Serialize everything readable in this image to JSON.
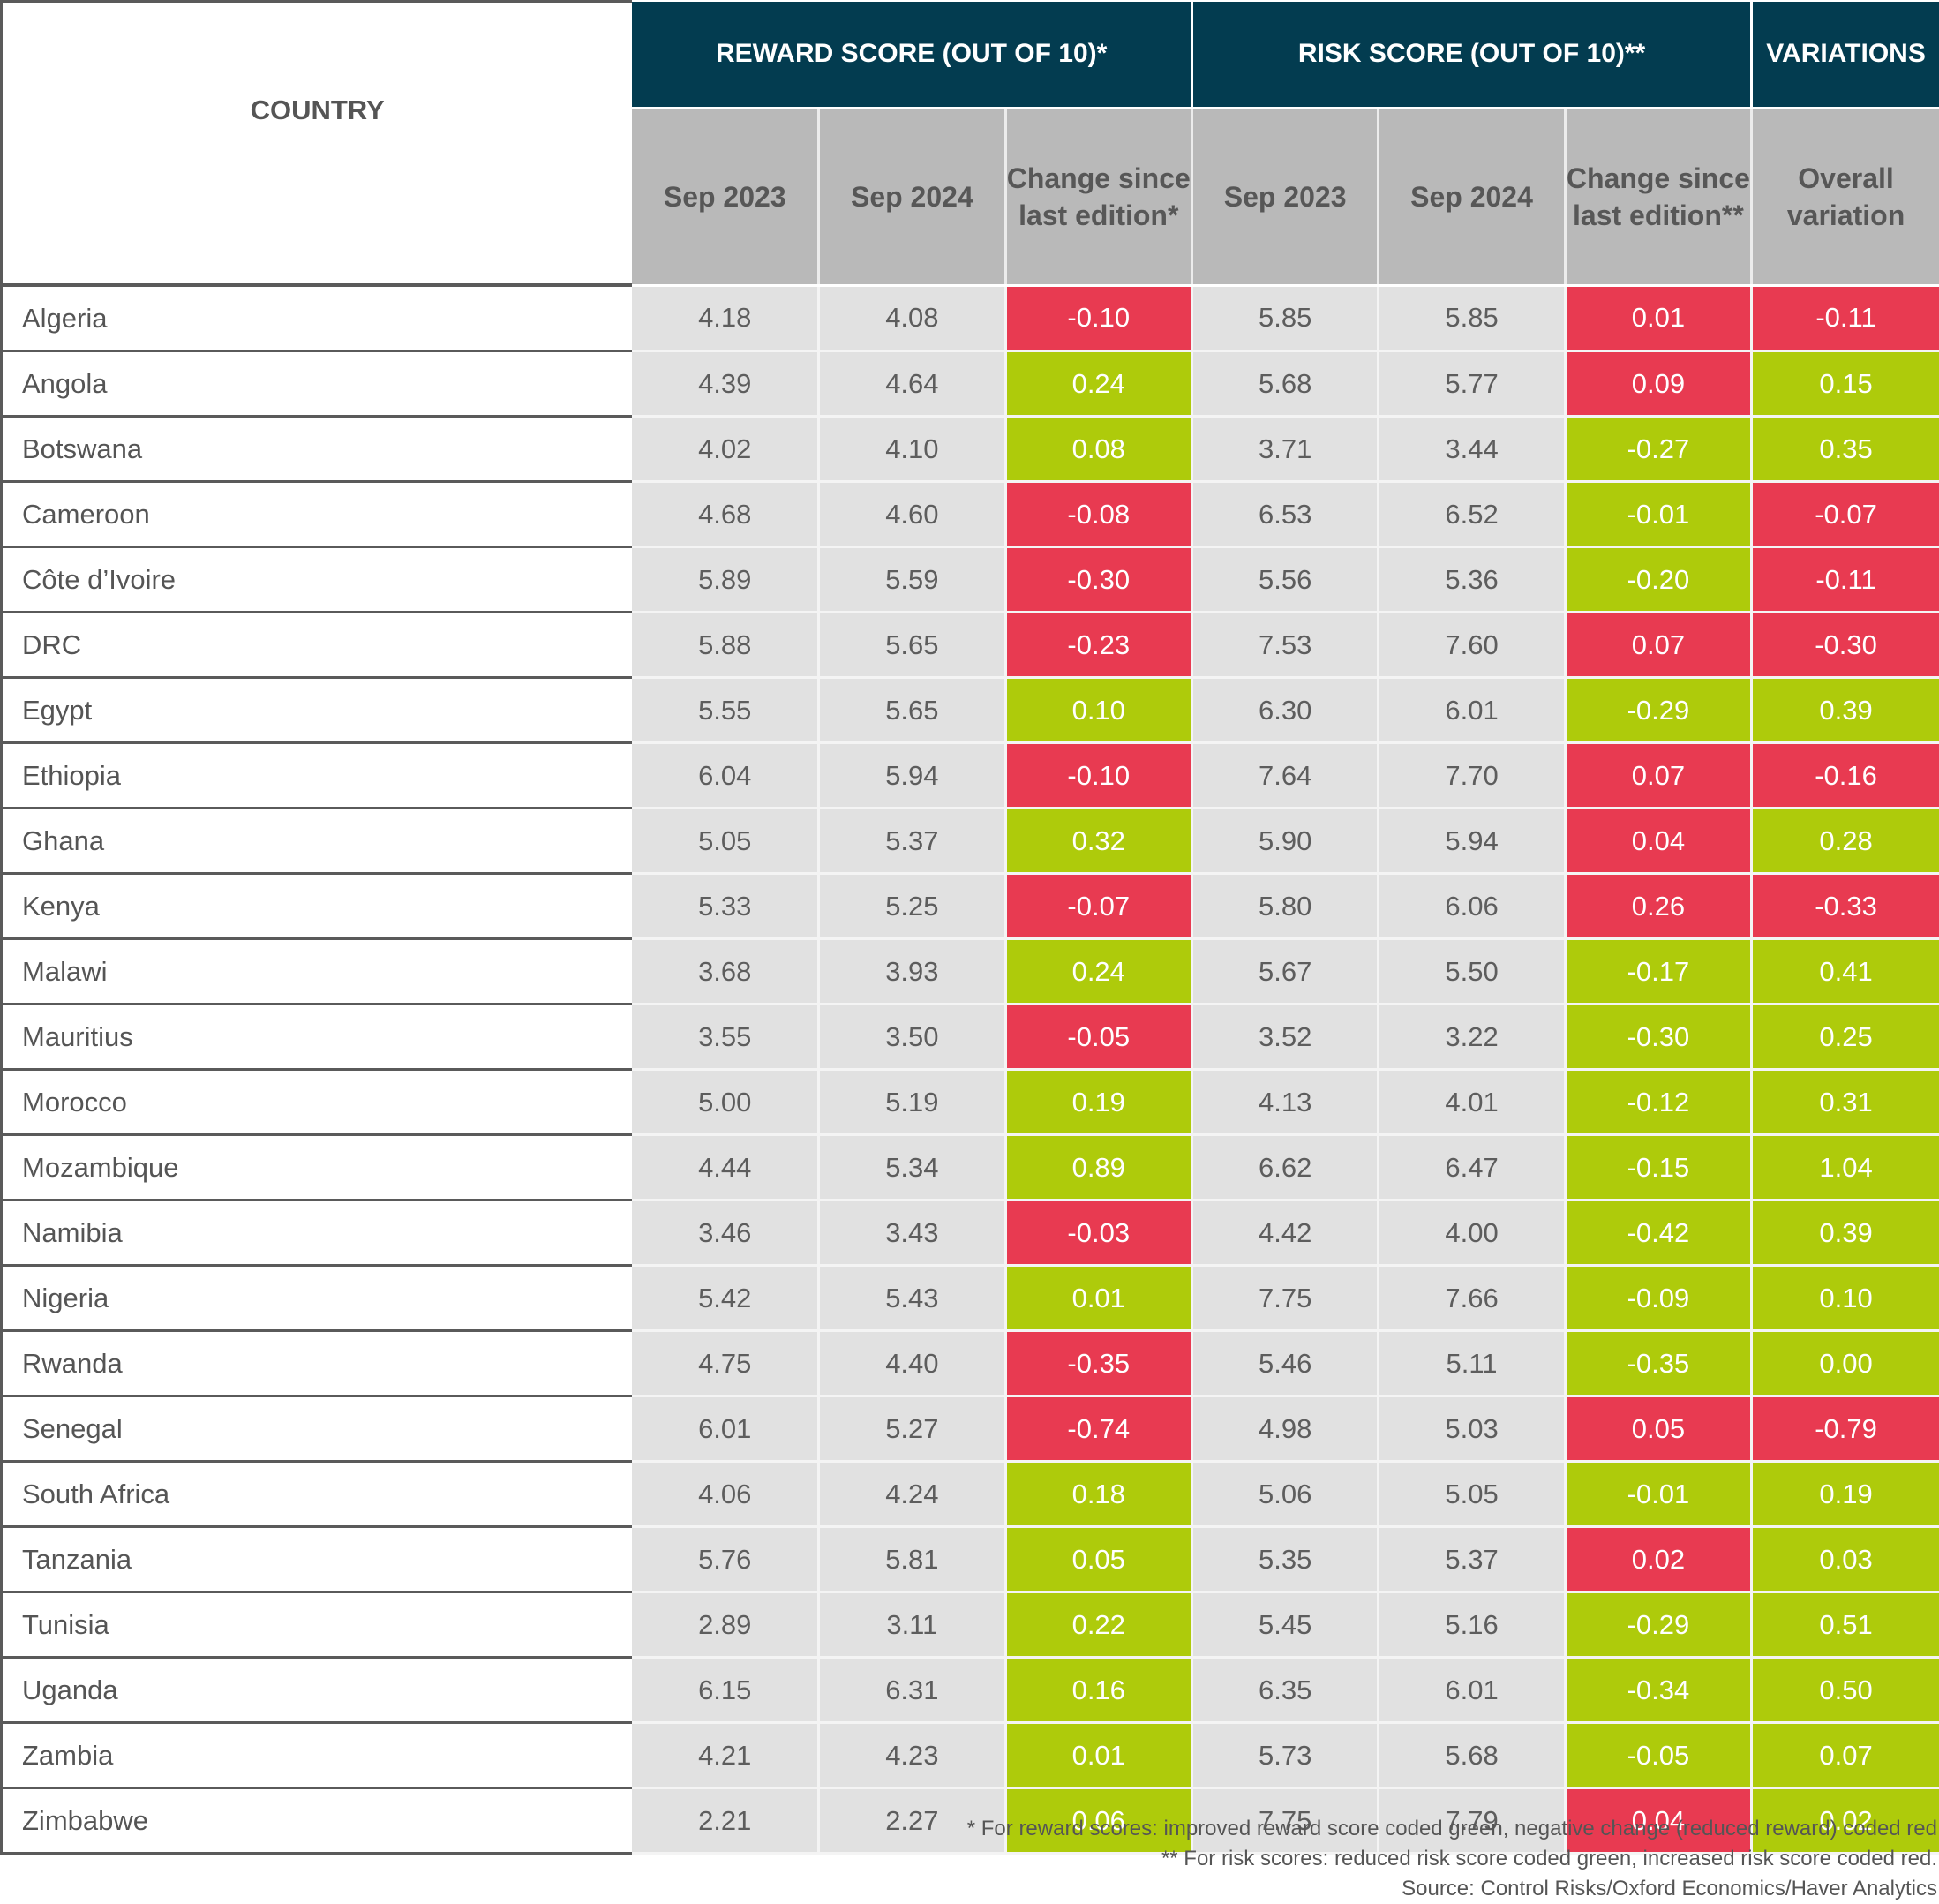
{
  "colors": {
    "header_dark": "#033c50",
    "subheader_gray": "#b9b9b9",
    "cell_gray": "#e1e1e1",
    "good_green": "#aecb0b",
    "bad_red": "#e83a51"
  },
  "header": {
    "country": "COUNTRY",
    "groups": [
      "REWARD SCORE (OUT OF 10)*",
      "RISK SCORE (OUT OF 10)**",
      "VARIATIONS"
    ],
    "subheaders": {
      "reward_2023": "Sep 2023",
      "reward_2024": "Sep 2024",
      "reward_change": "Change since last edition*",
      "risk_2023": "Sep 2023",
      "risk_2024": "Sep 2024",
      "risk_change": "Change since last edition**",
      "overall": "Overall variation"
    }
  },
  "footer": {
    "note_reward": "* For reward scores: improved reward score coded green, negative change (reduced reward) coded red",
    "note_risk": "** For risk scores: reduced risk score coded green, increased risk score coded red.",
    "source": "Source: Control Risks/Oxford Economics/Haver Analytics"
  },
  "chart_data": {
    "type": "table",
    "title": "",
    "columns": [
      "Country",
      "Reward Sep 2023",
      "Reward Sep 2024",
      "Reward change since last edition",
      "Risk Sep 2023",
      "Risk Sep 2024",
      "Risk change since last edition",
      "Overall variation"
    ],
    "coding": {
      "reward_change": "green if improved (positive), red if reduced",
      "risk_change": "green if reduced (negative), red if increased",
      "overall": "green if >= 0, red if negative"
    },
    "rows": [
      {
        "country": "Algeria",
        "reward_2023": "4.18",
        "reward_2024": "4.08",
        "reward_change": "-0.10",
        "risk_2023": "5.85",
        "risk_2024": "5.85",
        "risk_change": "0.01",
        "overall": "-0.11",
        "reward_color": "red",
        "risk_color": "red",
        "overall_color": "red"
      },
      {
        "country": "Angola",
        "reward_2023": "4.39",
        "reward_2024": "4.64",
        "reward_change": "0.24",
        "risk_2023": "5.68",
        "risk_2024": "5.77",
        "risk_change": "0.09",
        "overall": "0.15",
        "reward_color": "green",
        "risk_color": "red",
        "overall_color": "green"
      },
      {
        "country": "Botswana",
        "reward_2023": "4.02",
        "reward_2024": "4.10",
        "reward_change": "0.08",
        "risk_2023": "3.71",
        "risk_2024": "3.44",
        "risk_change": "-0.27",
        "overall": "0.35",
        "reward_color": "green",
        "risk_color": "green",
        "overall_color": "green"
      },
      {
        "country": "Cameroon",
        "reward_2023": "4.68",
        "reward_2024": "4.60",
        "reward_change": "-0.08",
        "risk_2023": "6.53",
        "risk_2024": "6.52",
        "risk_change": "-0.01",
        "overall": "-0.07",
        "reward_color": "red",
        "risk_color": "green",
        "overall_color": "red"
      },
      {
        "country": "Côte d’Ivoire",
        "reward_2023": "5.89",
        "reward_2024": "5.59",
        "reward_change": "-0.30",
        "risk_2023": "5.56",
        "risk_2024": "5.36",
        "risk_change": "-0.20",
        "overall": "-0.11",
        "reward_color": "red",
        "risk_color": "green",
        "overall_color": "red"
      },
      {
        "country": "DRC",
        "reward_2023": "5.88",
        "reward_2024": "5.65",
        "reward_change": "-0.23",
        "risk_2023": "7.53",
        "risk_2024": "7.60",
        "risk_change": "0.07",
        "overall": "-0.30",
        "reward_color": "red",
        "risk_color": "red",
        "overall_color": "red"
      },
      {
        "country": "Egypt",
        "reward_2023": "5.55",
        "reward_2024": "5.65",
        "reward_change": "0.10",
        "risk_2023": "6.30",
        "risk_2024": "6.01",
        "risk_change": "-0.29",
        "overall": "0.39",
        "reward_color": "green",
        "risk_color": "green",
        "overall_color": "green"
      },
      {
        "country": "Ethiopia",
        "reward_2023": "6.04",
        "reward_2024": "5.94",
        "reward_change": "-0.10",
        "risk_2023": "7.64",
        "risk_2024": "7.70",
        "risk_change": "0.07",
        "overall": "-0.16",
        "reward_color": "red",
        "risk_color": "red",
        "overall_color": "red"
      },
      {
        "country": "Ghana",
        "reward_2023": "5.05",
        "reward_2024": "5.37",
        "reward_change": "0.32",
        "risk_2023": "5.90",
        "risk_2024": "5.94",
        "risk_change": "0.04",
        "overall": "0.28",
        "reward_color": "green",
        "risk_color": "red",
        "overall_color": "green"
      },
      {
        "country": "Kenya",
        "reward_2023": "5.33",
        "reward_2024": "5.25",
        "reward_change": "-0.07",
        "risk_2023": "5.80",
        "risk_2024": "6.06",
        "risk_change": "0.26",
        "overall": "-0.33",
        "reward_color": "red",
        "risk_color": "red",
        "overall_color": "red"
      },
      {
        "country": "Malawi",
        "reward_2023": "3.68",
        "reward_2024": "3.93",
        "reward_change": "0.24",
        "risk_2023": "5.67",
        "risk_2024": "5.50",
        "risk_change": "-0.17",
        "overall": "0.41",
        "reward_color": "green",
        "risk_color": "green",
        "overall_color": "green"
      },
      {
        "country": "Mauritius",
        "reward_2023": "3.55",
        "reward_2024": "3.50",
        "reward_change": "-0.05",
        "risk_2023": "3.52",
        "risk_2024": "3.22",
        "risk_change": "-0.30",
        "overall": "0.25",
        "reward_color": "red",
        "risk_color": "green",
        "overall_color": "green"
      },
      {
        "country": "Morocco",
        "reward_2023": "5.00",
        "reward_2024": "5.19",
        "reward_change": "0.19",
        "risk_2023": "4.13",
        "risk_2024": "4.01",
        "risk_change": "-0.12",
        "overall": "0.31",
        "reward_color": "green",
        "risk_color": "green",
        "overall_color": "green"
      },
      {
        "country": "Mozambique",
        "reward_2023": "4.44",
        "reward_2024": "5.34",
        "reward_change": "0.89",
        "risk_2023": "6.62",
        "risk_2024": "6.47",
        "risk_change": "-0.15",
        "overall": "1.04",
        "reward_color": "green",
        "risk_color": "green",
        "overall_color": "green"
      },
      {
        "country": "Namibia",
        "reward_2023": "3.46",
        "reward_2024": "3.43",
        "reward_change": "-0.03",
        "risk_2023": "4.42",
        "risk_2024": "4.00",
        "risk_change": "-0.42",
        "overall": "0.39",
        "reward_color": "red",
        "risk_color": "green",
        "overall_color": "green"
      },
      {
        "country": "Nigeria",
        "reward_2023": "5.42",
        "reward_2024": "5.43",
        "reward_change": "0.01",
        "risk_2023": "7.75",
        "risk_2024": "7.66",
        "risk_change": "-0.09",
        "overall": "0.10",
        "reward_color": "green",
        "risk_color": "green",
        "overall_color": "green"
      },
      {
        "country": "Rwanda",
        "reward_2023": "4.75",
        "reward_2024": "4.40",
        "reward_change": "-0.35",
        "risk_2023": "5.46",
        "risk_2024": "5.11",
        "risk_change": "-0.35",
        "overall": "0.00",
        "reward_color": "red",
        "risk_color": "green",
        "overall_color": "green"
      },
      {
        "country": "Senegal",
        "reward_2023": "6.01",
        "reward_2024": "5.27",
        "reward_change": "-0.74",
        "risk_2023": "4.98",
        "risk_2024": "5.03",
        "risk_change": "0.05",
        "overall": "-0.79",
        "reward_color": "red",
        "risk_color": "red",
        "overall_color": "red"
      },
      {
        "country": "South Africa",
        "reward_2023": "4.06",
        "reward_2024": "4.24",
        "reward_change": "0.18",
        "risk_2023": "5.06",
        "risk_2024": "5.05",
        "risk_change": "-0.01",
        "overall": "0.19",
        "reward_color": "green",
        "risk_color": "green",
        "overall_color": "green"
      },
      {
        "country": "Tanzania",
        "reward_2023": "5.76",
        "reward_2024": "5.81",
        "reward_change": "0.05",
        "risk_2023": "5.35",
        "risk_2024": "5.37",
        "risk_change": "0.02",
        "overall": "0.03",
        "reward_color": "green",
        "risk_color": "red",
        "overall_color": "green"
      },
      {
        "country": "Tunisia",
        "reward_2023": "2.89",
        "reward_2024": "3.11",
        "reward_change": "0.22",
        "risk_2023": "5.45",
        "risk_2024": "5.16",
        "risk_change": "-0.29",
        "overall": "0.51",
        "reward_color": "green",
        "risk_color": "green",
        "overall_color": "green"
      },
      {
        "country": "Uganda",
        "reward_2023": "6.15",
        "reward_2024": "6.31",
        "reward_change": "0.16",
        "risk_2023": "6.35",
        "risk_2024": "6.01",
        "risk_change": "-0.34",
        "overall": "0.50",
        "reward_color": "green",
        "risk_color": "green",
        "overall_color": "green"
      },
      {
        "country": "Zambia",
        "reward_2023": "4.21",
        "reward_2024": "4.23",
        "reward_change": "0.01",
        "risk_2023": "5.73",
        "risk_2024": "5.68",
        "risk_change": "-0.05",
        "overall": "0.07",
        "reward_color": "green",
        "risk_color": "green",
        "overall_color": "green"
      },
      {
        "country": "Zimbabwe",
        "reward_2023": "2.21",
        "reward_2024": "2.27",
        "reward_change": "0.06",
        "risk_2023": "7.75",
        "risk_2024": "7.79",
        "risk_change": "0.04",
        "overall": "0.02",
        "reward_color": "green",
        "risk_color": "red",
        "overall_color": "green"
      }
    ]
  }
}
